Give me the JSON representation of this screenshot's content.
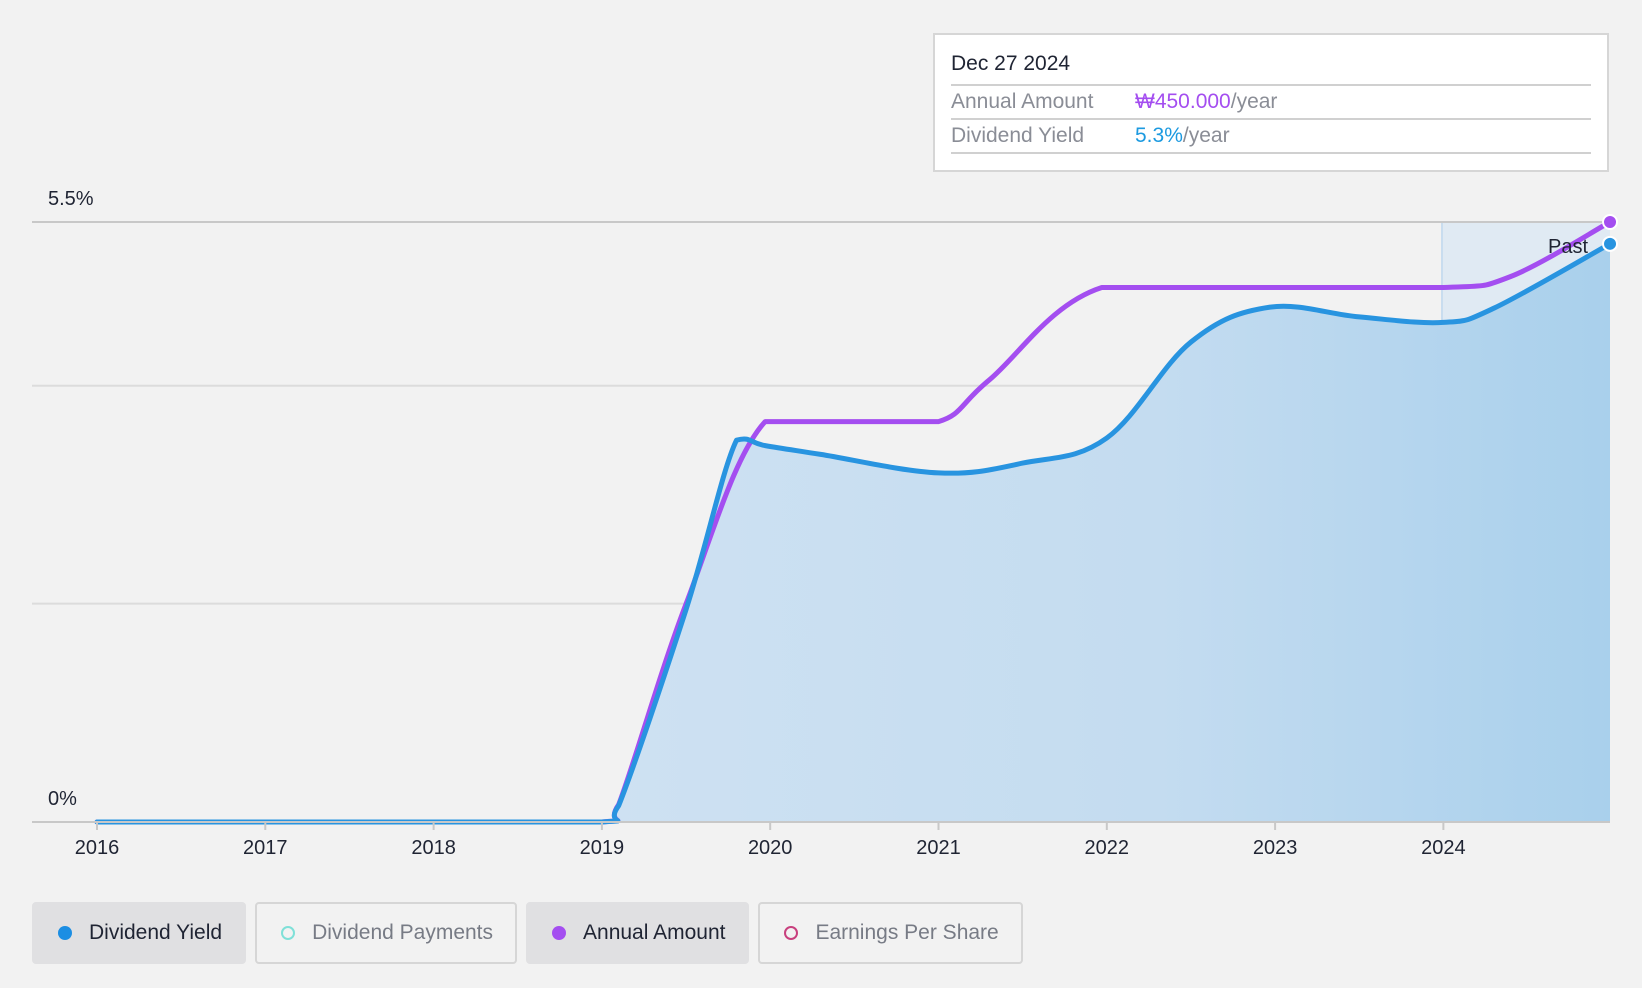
{
  "tooltip": {
    "date": "Dec 27 2024",
    "annual_label": "Annual Amount",
    "annual_value": "₩450.000",
    "annual_suffix": "/year",
    "yield_label": "Dividend Yield",
    "yield_value": "5.3%",
    "yield_suffix": "/year"
  },
  "past_label": "Past",
  "legend": [
    {
      "label": "Dividend Yield",
      "color": "#1c8ee3",
      "filled": true,
      "active": true
    },
    {
      "label": "Dividend Payments",
      "color": "#7fe0d8",
      "filled": false,
      "active": false
    },
    {
      "label": "Annual Amount",
      "color": "#a44ef0",
      "filled": true,
      "active": true
    },
    {
      "label": "Earnings Per Share",
      "color": "#c8407e",
      "filled": false,
      "active": false
    }
  ],
  "colors": {
    "yield_line": "#2894e0",
    "amount_line": "#a44ef0",
    "area_fill": "#9fcbea",
    "gridline": "#dcdcdc",
    "past_region": "#d9e6f2"
  },
  "chart_data": {
    "type": "area",
    "x_label_ticks": [
      "2016",
      "2017",
      "2018",
      "2019",
      "2020",
      "2021",
      "2022",
      "2023",
      "2024"
    ],
    "y_tick_labels": [
      "0%",
      "5.5%"
    ],
    "ylim": [
      0,
      5.5
    ],
    "xlim": [
      2016,
      2024.99
    ],
    "past_region_start": 2024,
    "grid": true,
    "series": [
      {
        "name": "Dividend Yield",
        "values": [
          [
            2016,
            0
          ],
          [
            2017,
            0
          ],
          [
            2018,
            0
          ],
          [
            2019,
            0
          ],
          [
            2019.1,
            0.15
          ],
          [
            2019.5,
            1.95
          ],
          [
            2019.8,
            3.5
          ],
          [
            2019.97,
            3.45
          ],
          [
            2020.3,
            3.37
          ],
          [
            2021,
            3.2
          ],
          [
            2021.5,
            3.29
          ],
          [
            2022,
            3.52
          ],
          [
            2022.5,
            4.4
          ],
          [
            2022.97,
            4.72
          ],
          [
            2023.5,
            4.63
          ],
          [
            2024,
            4.58
          ],
          [
            2024.3,
            4.71
          ],
          [
            2024.99,
            5.3
          ]
        ]
      },
      {
        "name": "Annual Amount",
        "values": [
          [
            2016,
            0
          ],
          [
            2017,
            0
          ],
          [
            2018,
            0
          ],
          [
            2019,
            0
          ],
          [
            2019.1,
            0.16
          ],
          [
            2019.5,
            2.0
          ],
          [
            2019.97,
            3.67
          ],
          [
            2020.5,
            3.67
          ],
          [
            2021,
            3.67
          ],
          [
            2021.3,
            4.05
          ],
          [
            2021.97,
            4.9
          ],
          [
            2023,
            4.9
          ],
          [
            2024,
            4.9
          ],
          [
            2024.4,
            5.0
          ],
          [
            2024.99,
            5.5
          ]
        ]
      }
    ]
  }
}
